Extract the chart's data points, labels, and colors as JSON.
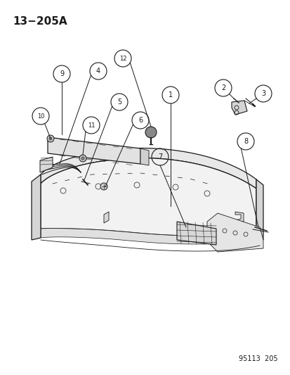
{
  "title": "13−205A",
  "footer": "95113  205",
  "bg_color": "#ffffff",
  "line_color": "#1a1a1a",
  "title_fontsize": 11,
  "footer_fontsize": 7,
  "callout_r": 0.028,
  "callout_fontsize": 7
}
